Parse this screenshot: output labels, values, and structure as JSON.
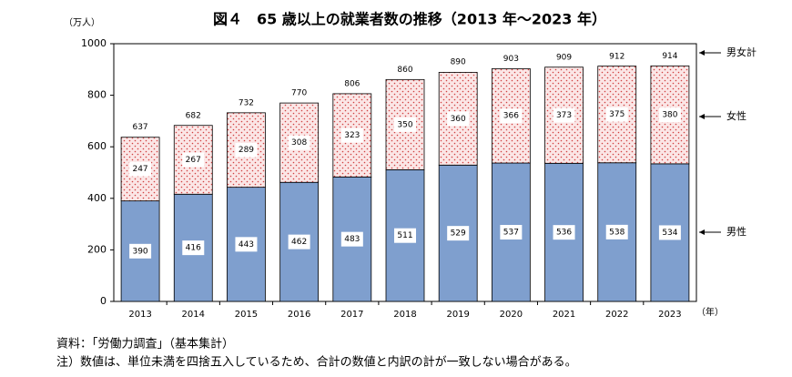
{
  "chart_data": {
    "type": "stacked_bar",
    "title": "図４　65 歳以上の就業者数の推移（2013 年～2023 年）",
    "y_unit": "（万人）",
    "x_unit": "（年）",
    "categories": [
      "2013",
      "2014",
      "2015",
      "2016",
      "2017",
      "2018",
      "2019",
      "2020",
      "2021",
      "2022",
      "2023"
    ],
    "series": [
      {
        "name": "男性",
        "color": "#7f9fce",
        "values": [
          390,
          416,
          443,
          462,
          483,
          511,
          529,
          537,
          536,
          538,
          534
        ]
      },
      {
        "name": "女性",
        "color": "#f9dede",
        "values": [
          247,
          267,
          289,
          308,
          323,
          350,
          360,
          366,
          373,
          375,
          380
        ]
      }
    ],
    "total_name": "男女計",
    "totals": [
      637,
      682,
      732,
      770,
      806,
      860,
      890,
      903,
      909,
      912,
      914
    ],
    "ylim": [
      0,
      1000
    ],
    "yticks": [
      0,
      200,
      400,
      600,
      800,
      1000
    ],
    "notes": [
      "資料：「労働力調査」（基本集計）",
      "注）数値は、単位未満を四捨五入しているため、合計の数値と内訳の計が一致しない場合がある。"
    ]
  }
}
